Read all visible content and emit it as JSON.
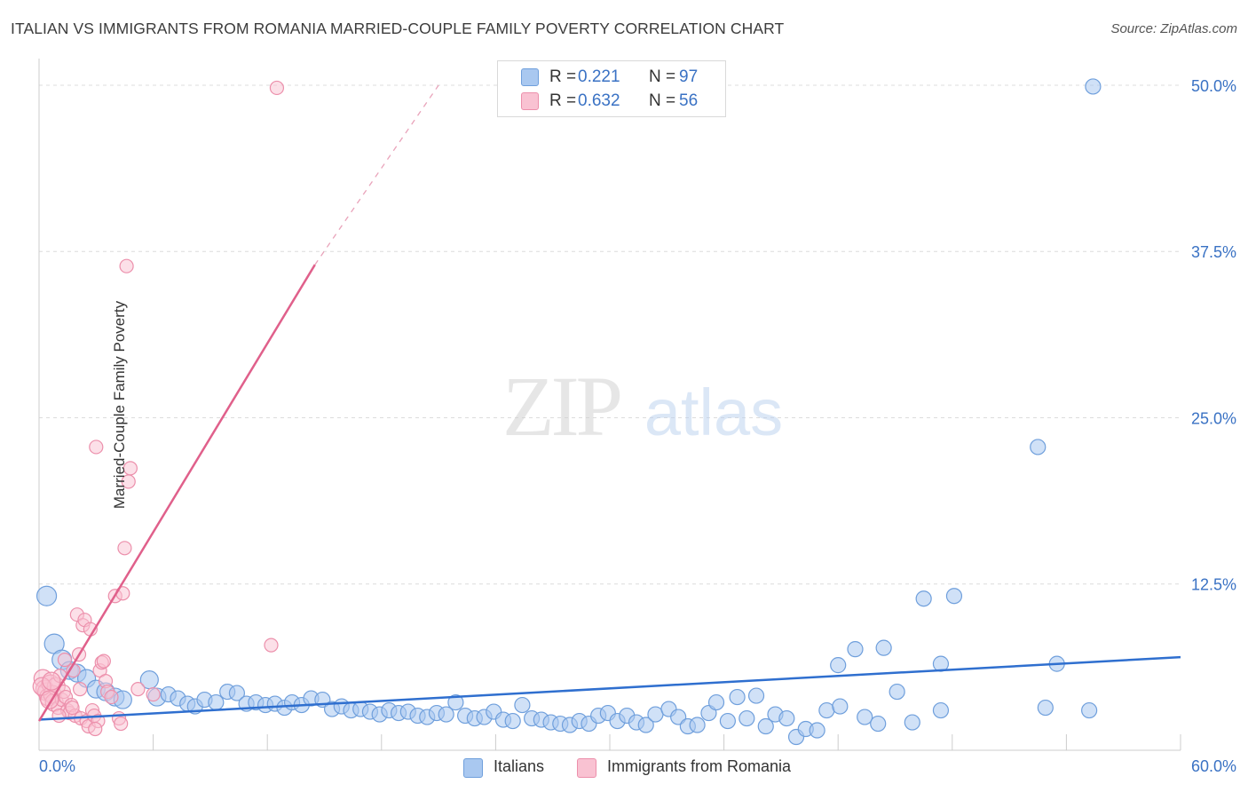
{
  "header": {
    "title": "ITALIAN VS IMMIGRANTS FROM ROMANIA MARRIED-COUPLE FAMILY POVERTY CORRELATION CHART",
    "source": "Source: ZipAtlas.com"
  },
  "watermark": {
    "zip": "ZIP",
    "atlas": "atlas"
  },
  "legend": {
    "r_label": "R =",
    "n_label": "N =",
    "series": [
      {
        "r": "0.221",
        "n": "97"
      },
      {
        "r": "0.632",
        "n": "56"
      }
    ]
  },
  "colors": {
    "italians_fill": "#a9c8f0",
    "italians_stroke": "#6f9fdc",
    "italians_line": "#2f6fcf",
    "romania_fill": "#f9c2d2",
    "romania_stroke": "#ec8fab",
    "romania_line": "#e0608b",
    "axis_label": "#3a72c4",
    "grid": "#dcdcdc"
  },
  "chart_data": {
    "type": "scatter",
    "title": "ITALIAN VS IMMIGRANTS FROM ROMANIA MARRIED-COUPLE FAMILY POVERTY CORRELATION CHART",
    "xlabel": "",
    "ylabel": "Married-Couple Family Poverty",
    "xlim": [
      0,
      60
    ],
    "ylim": [
      0,
      52
    ],
    "x_tick_labels": [
      "0.0%",
      "60.0%"
    ],
    "y_ticks": [
      12.5,
      25.0,
      37.5,
      50.0
    ],
    "y_tick_labels": [
      "12.5%",
      "25.0%",
      "37.5%",
      "50.0%"
    ],
    "grid": true,
    "legend_position": "top-center",
    "series": [
      {
        "name": "Italians",
        "r": 0.221,
        "n": 97,
        "trend": {
          "x": [
            0,
            60
          ],
          "y": [
            2.3,
            7.0
          ],
          "style": "solid"
        },
        "points": [
          [
            0.4,
            11.6
          ],
          [
            0.8,
            8.0
          ],
          [
            1.2,
            6.8
          ],
          [
            1.6,
            6.0
          ],
          [
            2.0,
            5.8
          ],
          [
            2.5,
            5.4
          ],
          [
            3.0,
            4.6
          ],
          [
            3.5,
            4.4
          ],
          [
            4.0,
            4.0
          ],
          [
            4.4,
            3.8
          ],
          [
            5.8,
            5.3
          ],
          [
            6.2,
            4.0
          ],
          [
            6.8,
            4.2
          ],
          [
            7.3,
            3.9
          ],
          [
            7.8,
            3.5
          ],
          [
            8.2,
            3.3
          ],
          [
            8.7,
            3.8
          ],
          [
            9.3,
            3.6
          ],
          [
            9.9,
            4.4
          ],
          [
            10.4,
            4.3
          ],
          [
            10.9,
            3.5
          ],
          [
            11.4,
            3.6
          ],
          [
            11.9,
            3.4
          ],
          [
            12.4,
            3.5
          ],
          [
            12.9,
            3.2
          ],
          [
            13.3,
            3.6
          ],
          [
            13.8,
            3.4
          ],
          [
            14.3,
            3.9
          ],
          [
            14.9,
            3.8
          ],
          [
            15.4,
            3.1
          ],
          [
            15.9,
            3.3
          ],
          [
            16.4,
            3.0
          ],
          [
            16.9,
            3.1
          ],
          [
            17.4,
            2.9
          ],
          [
            17.9,
            2.7
          ],
          [
            18.4,
            3.0
          ],
          [
            18.9,
            2.8
          ],
          [
            19.4,
            2.9
          ],
          [
            19.9,
            2.6
          ],
          [
            20.4,
            2.5
          ],
          [
            20.9,
            2.8
          ],
          [
            21.4,
            2.7
          ],
          [
            21.9,
            3.6
          ],
          [
            22.4,
            2.6
          ],
          [
            22.9,
            2.4
          ],
          [
            23.4,
            2.5
          ],
          [
            23.9,
            2.9
          ],
          [
            24.4,
            2.3
          ],
          [
            24.9,
            2.2
          ],
          [
            25.4,
            3.4
          ],
          [
            25.9,
            2.4
          ],
          [
            26.4,
            2.3
          ],
          [
            26.9,
            2.1
          ],
          [
            27.4,
            2.0
          ],
          [
            27.9,
            1.9
          ],
          [
            28.4,
            2.2
          ],
          [
            28.9,
            2.0
          ],
          [
            29.4,
            2.6
          ],
          [
            29.9,
            2.8
          ],
          [
            30.4,
            2.2
          ],
          [
            30.9,
            2.6
          ],
          [
            31.4,
            2.1
          ],
          [
            31.9,
            1.9
          ],
          [
            32.4,
            2.7
          ],
          [
            33.1,
            3.1
          ],
          [
            33.6,
            2.5
          ],
          [
            34.1,
            1.8
          ],
          [
            34.6,
            1.9
          ],
          [
            35.2,
            2.8
          ],
          [
            35.6,
            3.6
          ],
          [
            36.2,
            2.2
          ],
          [
            36.7,
            4.0
          ],
          [
            37.2,
            2.4
          ],
          [
            37.7,
            4.1
          ],
          [
            38.2,
            1.8
          ],
          [
            38.7,
            2.7
          ],
          [
            39.3,
            2.4
          ],
          [
            39.8,
            1.0
          ],
          [
            40.3,
            1.6
          ],
          [
            40.9,
            1.5
          ],
          [
            41.4,
            3.0
          ],
          [
            42.0,
            6.4
          ],
          [
            42.1,
            3.3
          ],
          [
            42.9,
            7.6
          ],
          [
            43.4,
            2.5
          ],
          [
            44.1,
            2.0
          ],
          [
            44.4,
            7.7
          ],
          [
            45.1,
            4.4
          ],
          [
            45.9,
            2.1
          ],
          [
            46.5,
            11.4
          ],
          [
            47.4,
            6.5
          ],
          [
            47.4,
            3.0
          ],
          [
            48.1,
            11.6
          ],
          [
            52.5,
            22.8
          ],
          [
            52.9,
            3.2
          ],
          [
            53.5,
            6.5
          ],
          [
            55.2,
            3.0
          ],
          [
            55.4,
            49.9
          ]
        ]
      },
      {
        "name": "Immigrants from Romania",
        "r": 0.632,
        "n": 56,
        "trend": {
          "x": [
            0,
            14.5
          ],
          "y": [
            2.2,
            36.5
          ],
          "style": "solid",
          "dashed_extension": {
            "x": [
              14.5,
              21.0
            ],
            "y": [
              36.5,
              50.0
            ]
          }
        },
        "points": [
          [
            0.2,
            5.4
          ],
          [
            0.3,
            4.6
          ],
          [
            0.4,
            4.4
          ],
          [
            0.5,
            4.0
          ],
          [
            0.6,
            5.0
          ],
          [
            0.7,
            4.2
          ],
          [
            0.8,
            3.6
          ],
          [
            0.9,
            4.8
          ],
          [
            1.0,
            3.2
          ],
          [
            1.1,
            5.6
          ],
          [
            1.2,
            3.8
          ],
          [
            1.3,
            4.4
          ],
          [
            1.4,
            4.0
          ],
          [
            1.5,
            3.0
          ],
          [
            1.6,
            2.8
          ],
          [
            1.7,
            3.4
          ],
          [
            1.8,
            6.0
          ],
          [
            1.9,
            2.6
          ],
          [
            2.0,
            10.2
          ],
          [
            2.1,
            7.2
          ],
          [
            2.2,
            2.4
          ],
          [
            2.3,
            9.4
          ],
          [
            2.4,
            9.8
          ],
          [
            2.5,
            2.2
          ],
          [
            2.6,
            1.8
          ],
          [
            2.7,
            9.1
          ],
          [
            2.8,
            3.0
          ],
          [
            2.9,
            2.6
          ],
          [
            3.0,
            22.8
          ],
          [
            3.1,
            2.2
          ],
          [
            3.2,
            6.0
          ],
          [
            3.3,
            6.6
          ],
          [
            3.5,
            5.2
          ],
          [
            3.6,
            4.4
          ],
          [
            3.8,
            4.0
          ],
          [
            4.0,
            11.6
          ],
          [
            4.2,
            2.4
          ],
          [
            4.3,
            2.0
          ],
          [
            4.4,
            11.8
          ],
          [
            4.5,
            15.2
          ],
          [
            4.6,
            36.4
          ],
          [
            4.7,
            20.2
          ],
          [
            4.8,
            21.2
          ],
          [
            5.2,
            4.6
          ],
          [
            6.0,
            4.2
          ],
          [
            12.2,
            7.9
          ],
          [
            12.5,
            49.8
          ],
          [
            1.35,
            6.8
          ],
          [
            0.15,
            4.8
          ],
          [
            0.65,
            5.2
          ],
          [
            1.05,
            2.6
          ],
          [
            1.75,
            3.2
          ],
          [
            2.15,
            4.6
          ],
          [
            2.95,
            1.6
          ],
          [
            3.4,
            6.7
          ],
          [
            0.55,
            3.8
          ]
        ]
      }
    ]
  },
  "bottom_legend": {
    "italians": "Italians",
    "romania": "Immigrants from Romania"
  }
}
